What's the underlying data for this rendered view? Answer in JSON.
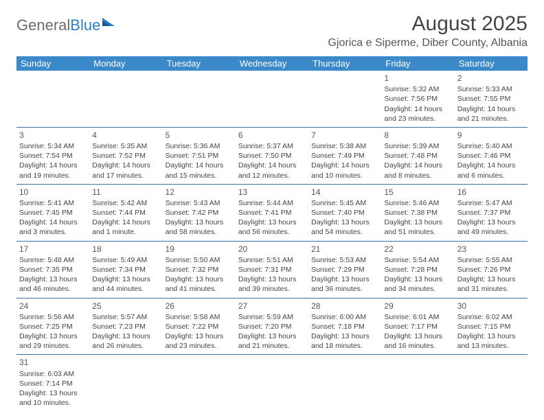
{
  "logo": {
    "part1": "General",
    "part2": "Blue"
  },
  "title": "August 2025",
  "location": "Gjorica e Siperme, Diber County, Albania",
  "header_bg": "#3b89c9",
  "border_color": "#3b6fa8",
  "daynames": [
    "Sunday",
    "Monday",
    "Tuesday",
    "Wednesday",
    "Thursday",
    "Friday",
    "Saturday"
  ],
  "weeks": [
    [
      null,
      null,
      null,
      null,
      null,
      {
        "n": "1",
        "sr": "Sunrise: 5:32 AM",
        "ss": "Sunset: 7:56 PM",
        "d1": "Daylight: 14 hours",
        "d2": "and 23 minutes."
      },
      {
        "n": "2",
        "sr": "Sunrise: 5:33 AM",
        "ss": "Sunset: 7:55 PM",
        "d1": "Daylight: 14 hours",
        "d2": "and 21 minutes."
      }
    ],
    [
      {
        "n": "3",
        "sr": "Sunrise: 5:34 AM",
        "ss": "Sunset: 7:54 PM",
        "d1": "Daylight: 14 hours",
        "d2": "and 19 minutes."
      },
      {
        "n": "4",
        "sr": "Sunrise: 5:35 AM",
        "ss": "Sunset: 7:52 PM",
        "d1": "Daylight: 14 hours",
        "d2": "and 17 minutes."
      },
      {
        "n": "5",
        "sr": "Sunrise: 5:36 AM",
        "ss": "Sunset: 7:51 PM",
        "d1": "Daylight: 14 hours",
        "d2": "and 15 minutes."
      },
      {
        "n": "6",
        "sr": "Sunrise: 5:37 AM",
        "ss": "Sunset: 7:50 PM",
        "d1": "Daylight: 14 hours",
        "d2": "and 12 minutes."
      },
      {
        "n": "7",
        "sr": "Sunrise: 5:38 AM",
        "ss": "Sunset: 7:49 PM",
        "d1": "Daylight: 14 hours",
        "d2": "and 10 minutes."
      },
      {
        "n": "8",
        "sr": "Sunrise: 5:39 AM",
        "ss": "Sunset: 7:48 PM",
        "d1": "Daylight: 14 hours",
        "d2": "and 8 minutes."
      },
      {
        "n": "9",
        "sr": "Sunrise: 5:40 AM",
        "ss": "Sunset: 7:46 PM",
        "d1": "Daylight: 14 hours",
        "d2": "and 6 minutes."
      }
    ],
    [
      {
        "n": "10",
        "sr": "Sunrise: 5:41 AM",
        "ss": "Sunset: 7:45 PM",
        "d1": "Daylight: 14 hours",
        "d2": "and 3 minutes."
      },
      {
        "n": "11",
        "sr": "Sunrise: 5:42 AM",
        "ss": "Sunset: 7:44 PM",
        "d1": "Daylight: 14 hours",
        "d2": "and 1 minute."
      },
      {
        "n": "12",
        "sr": "Sunrise: 5:43 AM",
        "ss": "Sunset: 7:42 PM",
        "d1": "Daylight: 13 hours",
        "d2": "and 58 minutes."
      },
      {
        "n": "13",
        "sr": "Sunrise: 5:44 AM",
        "ss": "Sunset: 7:41 PM",
        "d1": "Daylight: 13 hours",
        "d2": "and 56 minutes."
      },
      {
        "n": "14",
        "sr": "Sunrise: 5:45 AM",
        "ss": "Sunset: 7:40 PM",
        "d1": "Daylight: 13 hours",
        "d2": "and 54 minutes."
      },
      {
        "n": "15",
        "sr": "Sunrise: 5:46 AM",
        "ss": "Sunset: 7:38 PM",
        "d1": "Daylight: 13 hours",
        "d2": "and 51 minutes."
      },
      {
        "n": "16",
        "sr": "Sunrise: 5:47 AM",
        "ss": "Sunset: 7:37 PM",
        "d1": "Daylight: 13 hours",
        "d2": "and 49 minutes."
      }
    ],
    [
      {
        "n": "17",
        "sr": "Sunrise: 5:48 AM",
        "ss": "Sunset: 7:35 PM",
        "d1": "Daylight: 13 hours",
        "d2": "and 46 minutes."
      },
      {
        "n": "18",
        "sr": "Sunrise: 5:49 AM",
        "ss": "Sunset: 7:34 PM",
        "d1": "Daylight: 13 hours",
        "d2": "and 44 minutes."
      },
      {
        "n": "19",
        "sr": "Sunrise: 5:50 AM",
        "ss": "Sunset: 7:32 PM",
        "d1": "Daylight: 13 hours",
        "d2": "and 41 minutes."
      },
      {
        "n": "20",
        "sr": "Sunrise: 5:51 AM",
        "ss": "Sunset: 7:31 PM",
        "d1": "Daylight: 13 hours",
        "d2": "and 39 minutes."
      },
      {
        "n": "21",
        "sr": "Sunrise: 5:53 AM",
        "ss": "Sunset: 7:29 PM",
        "d1": "Daylight: 13 hours",
        "d2": "and 36 minutes."
      },
      {
        "n": "22",
        "sr": "Sunrise: 5:54 AM",
        "ss": "Sunset: 7:28 PM",
        "d1": "Daylight: 13 hours",
        "d2": "and 34 minutes."
      },
      {
        "n": "23",
        "sr": "Sunrise: 5:55 AM",
        "ss": "Sunset: 7:26 PM",
        "d1": "Daylight: 13 hours",
        "d2": "and 31 minutes."
      }
    ],
    [
      {
        "n": "24",
        "sr": "Sunrise: 5:56 AM",
        "ss": "Sunset: 7:25 PM",
        "d1": "Daylight: 13 hours",
        "d2": "and 29 minutes."
      },
      {
        "n": "25",
        "sr": "Sunrise: 5:57 AM",
        "ss": "Sunset: 7:23 PM",
        "d1": "Daylight: 13 hours",
        "d2": "and 26 minutes."
      },
      {
        "n": "26",
        "sr": "Sunrise: 5:58 AM",
        "ss": "Sunset: 7:22 PM",
        "d1": "Daylight: 13 hours",
        "d2": "and 23 minutes."
      },
      {
        "n": "27",
        "sr": "Sunrise: 5:59 AM",
        "ss": "Sunset: 7:20 PM",
        "d1": "Daylight: 13 hours",
        "d2": "and 21 minutes."
      },
      {
        "n": "28",
        "sr": "Sunrise: 6:00 AM",
        "ss": "Sunset: 7:18 PM",
        "d1": "Daylight: 13 hours",
        "d2": "and 18 minutes."
      },
      {
        "n": "29",
        "sr": "Sunrise: 6:01 AM",
        "ss": "Sunset: 7:17 PM",
        "d1": "Daylight: 13 hours",
        "d2": "and 16 minutes."
      },
      {
        "n": "30",
        "sr": "Sunrise: 6:02 AM",
        "ss": "Sunset: 7:15 PM",
        "d1": "Daylight: 13 hours",
        "d2": "and 13 minutes."
      }
    ],
    [
      {
        "n": "31",
        "sr": "Sunrise: 6:03 AM",
        "ss": "Sunset: 7:14 PM",
        "d1": "Daylight: 13 hours",
        "d2": "and 10 minutes."
      },
      null,
      null,
      null,
      null,
      null,
      null
    ]
  ]
}
